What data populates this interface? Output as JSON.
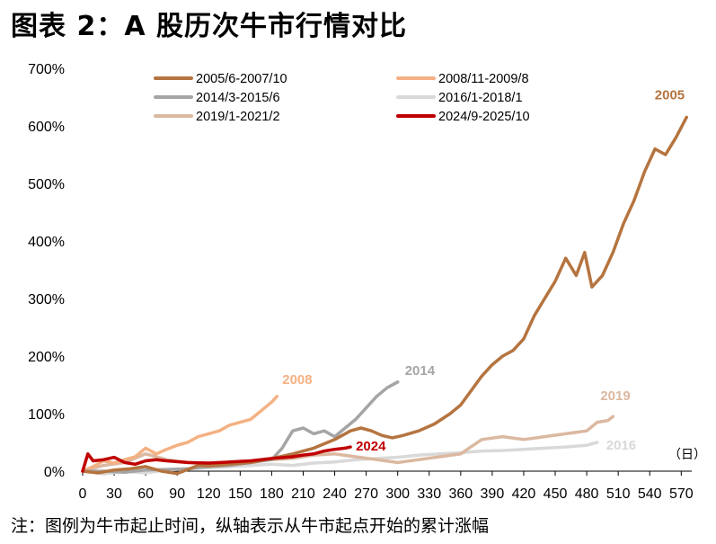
{
  "title": "图表 2：A 股历次牛市行情对比",
  "note": "注：图例为牛市起止时间，纵轴表示从牛市起点开始的累计涨幅",
  "chart_data": {
    "type": "line",
    "title": "图表 2：A 股历次牛市行情对比",
    "xlabel": "（日）",
    "ylabel": "",
    "xlim": [
      0,
      580
    ],
    "ylim": [
      0,
      700
    ],
    "x_ticks": [
      0,
      30,
      60,
      90,
      120,
      150,
      180,
      210,
      240,
      270,
      300,
      330,
      360,
      390,
      420,
      450,
      480,
      510,
      540,
      570
    ],
    "y_ticks": [
      0,
      100,
      200,
      300,
      400,
      500,
      600,
      700
    ],
    "y_tick_labels": [
      "0%",
      "100%",
      "200%",
      "300%",
      "400%",
      "500%",
      "600%",
      "700%"
    ],
    "legend_position": "top",
    "series": [
      {
        "name": "2005/6-2007/10",
        "end_label": "2005",
        "color": "#B5743F",
        "x": [
          0,
          15,
          30,
          45,
          60,
          75,
          90,
          100,
          110,
          120,
          140,
          160,
          180,
          200,
          220,
          240,
          255,
          265,
          275,
          285,
          295,
          305,
          320,
          335,
          350,
          360,
          370,
          380,
          390,
          400,
          410,
          420,
          430,
          440,
          450,
          460,
          470,
          478,
          485,
          495,
          505,
          515,
          525,
          535,
          545,
          555,
          565,
          575
        ],
        "y": [
          0,
          -3,
          2,
          4,
          8,
          0,
          -4,
          3,
          10,
          9,
          12,
          15,
          22,
          30,
          40,
          55,
          70,
          75,
          70,
          62,
          58,
          62,
          70,
          82,
          100,
          115,
          140,
          165,
          185,
          200,
          210,
          230,
          270,
          300,
          330,
          370,
          340,
          380,
          320,
          340,
          380,
          430,
          470,
          520,
          560,
          550,
          580,
          615
        ]
      },
      {
        "name": "2008/11-2009/8",
        "end_label": "2008",
        "color": "#F4B183",
        "x": [
          0,
          10,
          20,
          30,
          40,
          50,
          60,
          65,
          70,
          80,
          90,
          100,
          110,
          120,
          130,
          140,
          150,
          160,
          170,
          180,
          185
        ],
        "y": [
          0,
          8,
          18,
          14,
          20,
          25,
          40,
          35,
          30,
          38,
          45,
          50,
          60,
          65,
          70,
          80,
          85,
          90,
          105,
          120,
          130
        ]
      },
      {
        "name": "2014/3-2015/6",
        "end_label": "2014",
        "color": "#A5A5A5",
        "x": [
          0,
          20,
          40,
          60,
          80,
          100,
          120,
          140,
          160,
          180,
          190,
          200,
          210,
          220,
          230,
          240,
          250,
          260,
          270,
          280,
          290,
          300
        ],
        "y": [
          0,
          0,
          -2,
          2,
          3,
          4,
          8,
          10,
          15,
          20,
          40,
          70,
          75,
          65,
          70,
          60,
          75,
          90,
          110,
          130,
          145,
          155
        ]
      },
      {
        "name": "2016/1-2018/1",
        "end_label": "2016",
        "color": "#D9D9D9",
        "x": [
          0,
          20,
          40,
          60,
          80,
          100,
          120,
          140,
          160,
          180,
          200,
          220,
          240,
          260,
          280,
          300,
          320,
          340,
          360,
          380,
          400,
          420,
          440,
          460,
          480,
          490
        ],
        "y": [
          0,
          -5,
          0,
          -3,
          2,
          4,
          6,
          8,
          10,
          12,
          10,
          14,
          16,
          20,
          22,
          24,
          28,
          30,
          32,
          35,
          36,
          38,
          40,
          42,
          45,
          50
        ]
      },
      {
        "name": "2019/1-2021/2",
        "end_label": "2019",
        "color": "#DBB8A0",
        "x": [
          0,
          20,
          40,
          60,
          70,
          80,
          100,
          120,
          140,
          160,
          180,
          200,
          220,
          240,
          260,
          280,
          300,
          320,
          340,
          360,
          380,
          400,
          420,
          440,
          460,
          480,
          490,
          500,
          505
        ],
        "y": [
          0,
          10,
          15,
          30,
          25,
          20,
          15,
          12,
          15,
          18,
          20,
          22,
          28,
          30,
          25,
          20,
          15,
          20,
          25,
          30,
          55,
          60,
          55,
          60,
          65,
          70,
          85,
          88,
          95
        ]
      },
      {
        "name": "2024/9-2025/10",
        "end_label": "2024",
        "color": "#C00000",
        "x": [
          0,
          5,
          10,
          20,
          30,
          40,
          50,
          60,
          70,
          80,
          100,
          120,
          140,
          160,
          180,
          200,
          210,
          220,
          230,
          240,
          250,
          255
        ],
        "y": [
          0,
          30,
          18,
          20,
          24,
          15,
          12,
          18,
          20,
          18,
          15,
          14,
          16,
          18,
          22,
          25,
          28,
          30,
          35,
          38,
          40,
          42
        ]
      }
    ]
  }
}
